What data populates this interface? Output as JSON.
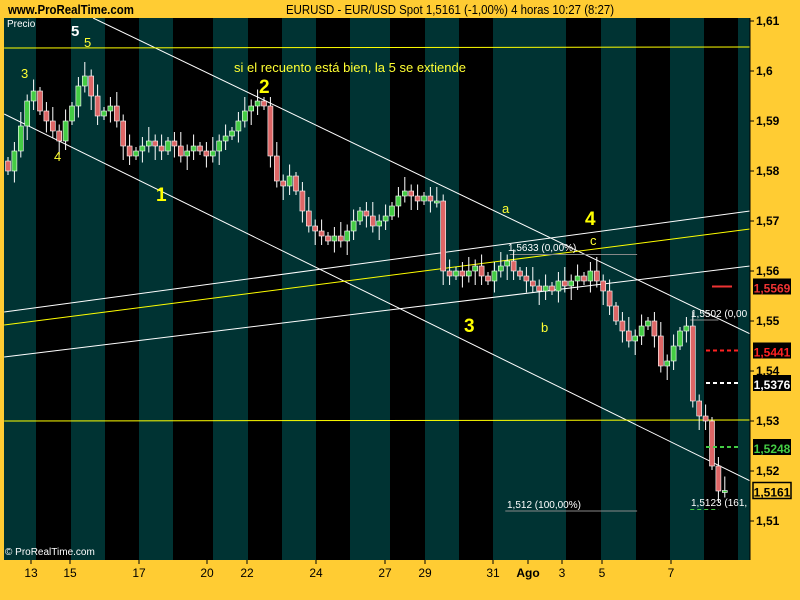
{
  "header": {
    "site": "www.ProRealTime.com",
    "title": "EURUSD - EUR/USD Spot    1,5161 (-1,00%)   4 horas  10:27 (8:27)"
  },
  "colors": {
    "frame": "#ffcc33",
    "stripe_a": "#003333",
    "stripe_b": "#000000",
    "up_candle": "#44cc44",
    "down_candle": "#dd6666",
    "wick": "#ffffff",
    "trendline": "#ffffff",
    "yellow_line": "#ffff00"
  },
  "chart_data": {
    "type": "candlestick",
    "title": "EURUSD - EUR/USD Spot",
    "ylabel": "Precio",
    "ylim": [
      1.51,
      1.61
    ],
    "yticks": [
      "1,61",
      "1,6",
      "1,59",
      "1,58",
      "1,57",
      "1,56",
      "1,55",
      "1,54",
      "1,53",
      "1,52",
      "1,51"
    ],
    "xticks": [
      "13",
      "15",
      "17",
      "20",
      "22",
      "24",
      "27",
      "29",
      "31",
      "Ago",
      "3",
      "5",
      "7"
    ],
    "grid": false,
    "closes": [
      1.58,
      1.584,
      1.589,
      1.594,
      1.596,
      1.592,
      1.59,
      1.588,
      1.586,
      1.59,
      1.593,
      1.597,
      1.599,
      1.595,
      1.591,
      1.592,
      1.593,
      1.59,
      1.585,
      1.583,
      1.584,
      1.585,
      1.586,
      1.585,
      1.584,
      1.586,
      1.585,
      1.583,
      1.584,
      1.585,
      1.584,
      1.583,
      1.584,
      1.586,
      1.587,
      1.588,
      1.59,
      1.592,
      1.593,
      1.594,
      1.593,
      1.583,
      1.578,
      1.577,
      1.579,
      1.576,
      1.572,
      1.569,
      1.568,
      1.567,
      1.566,
      1.567,
      1.566,
      1.568,
      1.57,
      1.572,
      1.571,
      1.569,
      1.57,
      1.571,
      1.573,
      1.575,
      1.576,
      1.575,
      1.574,
      1.575,
      1.574,
      1.574,
      1.56,
      1.559,
      1.56,
      1.559,
      1.56,
      1.561,
      1.559,
      1.558,
      1.56,
      1.561,
      1.562,
      1.56,
      1.559,
      1.558,
      1.557,
      1.556,
      1.557,
      1.556,
      1.558,
      1.557,
      1.558,
      1.559,
      1.558,
      1.56,
      1.558,
      1.556,
      1.553,
      1.55,
      1.548,
      1.546,
      1.547,
      1.549,
      1.55,
      1.547,
      1.541,
      1.542,
      1.545,
      1.548,
      1.549,
      1.534,
      1.531,
      1.53,
      1.521,
      1.516,
      1.5161
    ],
    "trendlines": [
      {
        "color": "white",
        "from": [
          13.3,
          1.6106
        ],
        "to": [
          116,
          1.5474
        ]
      },
      {
        "color": "white",
        "from": [
          -0.6,
          1.5914
        ],
        "to": [
          116,
          1.518
        ]
      },
      {
        "color": "white",
        "from": [
          -0.6,
          1.5518
        ],
        "to": [
          116,
          1.572
        ]
      },
      {
        "color": "white",
        "from": [
          -0.6,
          1.5428
        ],
        "to": [
          116,
          1.561
        ]
      },
      {
        "color": "yellow",
        "from": [
          -0.6,
          1.5492
        ],
        "to": [
          116,
          1.5684
        ]
      },
      {
        "color": "yellow",
        "from": [
          -0.6,
          1.6046
        ],
        "to": [
          116,
          1.6048
        ]
      },
      {
        "color": "yellow",
        "from": [
          -0.6,
          1.53
        ],
        "to": [
          116,
          1.5302
        ]
      }
    ],
    "levels": [
      {
        "price": 1.5633,
        "label": "1,5633 (0,00%)",
        "from": 78.4,
        "to": 98.3,
        "color": "#888888"
      },
      {
        "price": 1.512,
        "label": "1,512 (100,00%)",
        "from": 77.7,
        "to": 98.3,
        "color": "#888888"
      },
      {
        "price": 1.5502,
        "label": "1,5502 (0,00",
        "from": 106.6,
        "to": 111,
        "color": "#888888"
      },
      {
        "price": 1.5123,
        "label": "1,5123 (161,",
        "from": 106.6,
        "to": 111,
        "color": "#44cc44",
        "dashed": true
      }
    ],
    "markers": [
      {
        "price": 1.5569,
        "label": "1,5569",
        "color": "#ee3333",
        "bg": "#000000",
        "dashed": false
      },
      {
        "price": 1.5441,
        "label": "1,5441",
        "color": "#ff2222",
        "bg": "#000000",
        "dashed": true
      },
      {
        "price": 1.5376,
        "label": "1,5376",
        "color": "#ffffff",
        "bg": "#000000",
        "dashed": true
      },
      {
        "price": 1.5248,
        "label": "1,5248",
        "color": "#44cc44",
        "bg": "#000000",
        "dashed": true
      },
      {
        "price": 1.5161,
        "label": "1,5161",
        "color": "#000000",
        "bg": "#ffcc33",
        "dashed": false
      }
    ],
    "annotations": {
      "wave5_major": "5",
      "wave5_minor": "5",
      "wave3_minor": "3",
      "wave4_minor": "4",
      "wave1": "1",
      "wave2": "2",
      "wave3": "3",
      "wave4": "4",
      "wave_a": "a",
      "wave_b": "b",
      "wave_c": "c",
      "note": "si el recuento está bien, la 5 se extiende"
    }
  },
  "footer": {
    "copyright": "© ProRealTime.com"
  }
}
